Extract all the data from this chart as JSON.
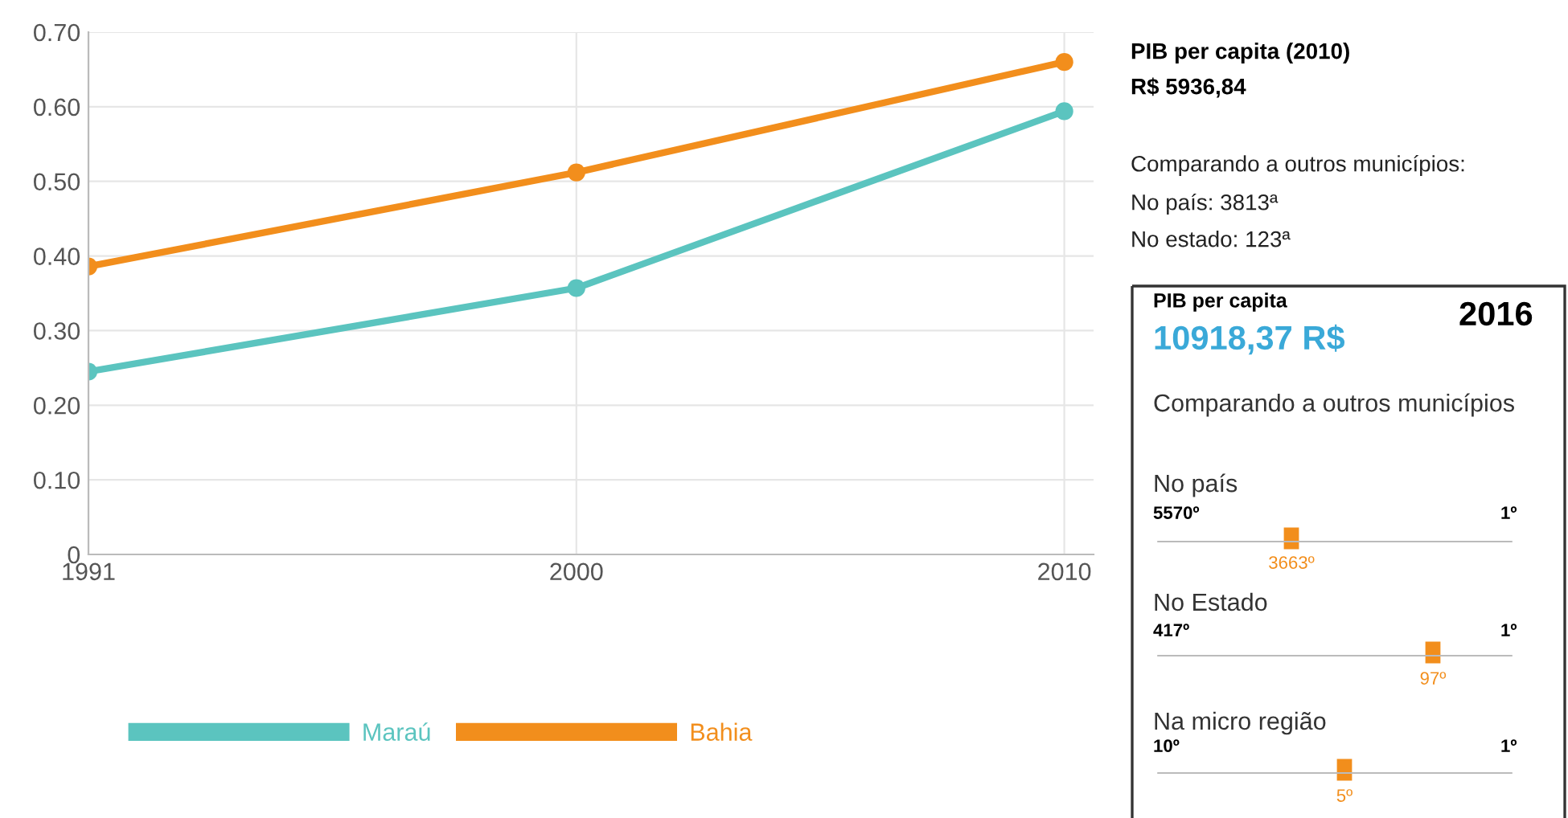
{
  "chart_data": [
    {
      "type": "line",
      "categories": [
        "1991",
        "2000",
        "2010"
      ],
      "series": [
        {
          "name": "Maraú",
          "color": "#5bc4bf",
          "values": [
            0.245,
            0.357,
            0.594
          ]
        },
        {
          "name": "Bahia",
          "color": "#f28e1c",
          "values": [
            0.386,
            0.512,
            0.66
          ]
        }
      ],
      "ylim": [
        0,
        0.7
      ],
      "yticks": [
        {
          "value": 0,
          "label": "0"
        },
        {
          "value": 0.1,
          "label": "0.10"
        },
        {
          "value": 0.2,
          "label": "0.20"
        },
        {
          "value": 0.3,
          "label": "0.30"
        },
        {
          "value": 0.4,
          "label": "0.40"
        },
        {
          "value": 0.5,
          "label": "0.50"
        },
        {
          "value": 0.6,
          "label": "0.60"
        },
        {
          "value": 0.7,
          "label": "0.70"
        }
      ],
      "grid": true,
      "legend": "bottom",
      "marker": "circle",
      "line_style": "solid"
    },
    {
      "type": "other",
      "annotations": [
        "PIB per capita (2010)",
        "R$ 5936,84",
        "Comparando a outros municípios:",
        "No país: 3813ª",
        "No estado: 123ª",
        "PIB per capita",
        "10918,37 R$",
        "2016",
        "Comparando a outros municípios",
        "No país",
        "5570º",
        "1º",
        "3663º",
        "No Estado",
        "417º",
        "1º",
        "97º",
        "Na micro região",
        "10º",
        "1º",
        "5º"
      ]
    }
  ]
}
